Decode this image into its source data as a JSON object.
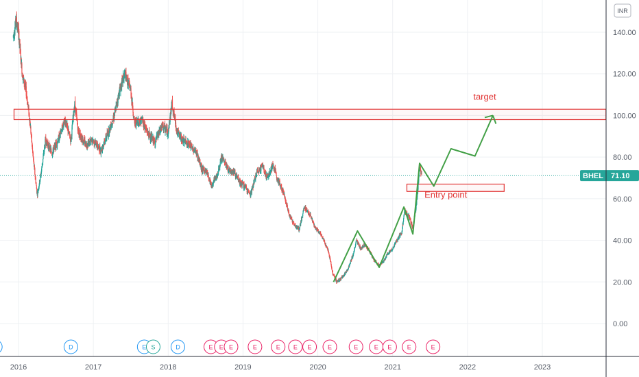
{
  "currency_label": "INR",
  "chart_data": {
    "type": "candlestick",
    "symbol": "BHEL",
    "last_price": 71.1,
    "last_price_label": "71.10",
    "ylim": [
      -12,
      150
    ],
    "y_ticks": [
      0,
      20,
      40,
      60,
      80,
      100,
      120,
      140
    ],
    "y_tick_labels": [
      "0.00",
      "20.00",
      "40.00",
      "60.00",
      "80.00",
      "100.00",
      "120.00",
      "140.00"
    ],
    "xlim": [
      2015.93,
      2024.0
    ],
    "x_ticks": [
      2016,
      2017,
      2018,
      2019,
      2020,
      2021,
      2022,
      2023
    ],
    "x_tick_labels": [
      "2016",
      "2017",
      "2018",
      "2019",
      "2020",
      "2021",
      "2022",
      "2023"
    ],
    "plot_area_end": 2023.85,
    "price_path": [
      [
        2015.93,
        138
      ],
      [
        2015.97,
        146
      ],
      [
        2016.0,
        140
      ],
      [
        2016.05,
        120
      ],
      [
        2016.1,
        112
      ],
      [
        2016.15,
        98
      ],
      [
        2016.2,
        78
      ],
      [
        2016.25,
        62
      ],
      [
        2016.3,
        72
      ],
      [
        2016.36,
        88
      ],
      [
        2016.45,
        82
      ],
      [
        2016.55,
        90
      ],
      [
        2016.62,
        98
      ],
      [
        2016.7,
        88
      ],
      [
        2016.75,
        106
      ],
      [
        2016.8,
        92
      ],
      [
        2016.9,
        86
      ],
      [
        2017.0,
        88
      ],
      [
        2017.1,
        83
      ],
      [
        2017.2,
        92
      ],
      [
        2017.28,
        100
      ],
      [
        2017.35,
        112
      ],
      [
        2017.42,
        120
      ],
      [
        2017.5,
        112
      ],
      [
        2017.55,
        96
      ],
      [
        2017.65,
        98
      ],
      [
        2017.72,
        92
      ],
      [
        2017.82,
        87
      ],
      [
        2017.92,
        95
      ],
      [
        2018.0,
        92
      ],
      [
        2018.05,
        106
      ],
      [
        2018.12,
        92
      ],
      [
        2018.2,
        88
      ],
      [
        2018.28,
        86
      ],
      [
        2018.38,
        82
      ],
      [
        2018.45,
        74
      ],
      [
        2018.52,
        73
      ],
      [
        2018.58,
        66
      ],
      [
        2018.66,
        72
      ],
      [
        2018.72,
        80
      ],
      [
        2018.8,
        74
      ],
      [
        2018.88,
        73
      ],
      [
        2018.95,
        68
      ],
      [
        2019.02,
        66
      ],
      [
        2019.1,
        62
      ],
      [
        2019.18,
        72
      ],
      [
        2019.26,
        76
      ],
      [
        2019.32,
        70
      ],
      [
        2019.4,
        76
      ],
      [
        2019.48,
        68
      ],
      [
        2019.55,
        62
      ],
      [
        2019.62,
        52
      ],
      [
        2019.68,
        48
      ],
      [
        2019.75,
        45
      ],
      [
        2019.82,
        56
      ],
      [
        2019.9,
        52
      ],
      [
        2019.96,
        46
      ],
      [
        2020.02,
        44
      ],
      [
        2020.08,
        40
      ],
      [
        2020.14,
        35
      ],
      [
        2020.2,
        24
      ],
      [
        2020.25,
        20
      ],
      [
        2020.32,
        22
      ],
      [
        2020.4,
        26
      ],
      [
        2020.47,
        33
      ],
      [
        2020.52,
        40
      ],
      [
        2020.57,
        36
      ],
      [
        2020.63,
        38
      ],
      [
        2020.7,
        34
      ],
      [
        2020.76,
        30
      ],
      [
        2020.82,
        28
      ],
      [
        2020.88,
        30
      ],
      [
        2020.94,
        34
      ],
      [
        2021.0,
        36
      ],
      [
        2021.06,
        40
      ],
      [
        2021.12,
        44
      ],
      [
        2021.16,
        54
      ],
      [
        2021.22,
        51
      ],
      [
        2021.27,
        46
      ],
      [
        2021.32,
        58
      ],
      [
        2021.36,
        75
      ],
      [
        2021.39,
        71
      ]
    ],
    "sr_zone": {
      "y_top": 103,
      "y_bottom": 98,
      "x_start": 2015.94,
      "x_end": 2023.85,
      "color": "#e03131"
    },
    "entry_zone": {
      "y_top": 67,
      "y_bottom": 63.5,
      "x_start": 2021.19,
      "x_end": 2022.49,
      "color": "#e03131"
    },
    "projection": {
      "color": "#43a047",
      "x": [
        2020.21,
        2020.53,
        2020.82,
        2021.15,
        2021.27,
        2021.36,
        2021.55,
        2021.78,
        2022.1,
        2022.34
      ],
      "y": [
        20,
        44.5,
        27,
        56,
        43,
        77,
        66,
        84,
        80.5,
        100
      ],
      "arrow_to": [
        2022.38,
        96
      ]
    },
    "annotations": [
      {
        "text": "target",
        "x": 2022.23,
        "y": 107.5
      },
      {
        "text": "Entry point",
        "x": 2021.71,
        "y": 60.5
      }
    ],
    "event_badges": [
      {
        "label": "D",
        "x": 2015.69,
        "color": "#2196f3"
      },
      {
        "label": "D",
        "x": 2016.7,
        "color": "#2196f3"
      },
      {
        "label": "E",
        "x": 2017.68,
        "color": "#2196f3"
      },
      {
        "label": "S",
        "x": 2017.8,
        "color": "#26a69a"
      },
      {
        "label": "D",
        "x": 2018.13,
        "color": "#2196f3"
      },
      {
        "label": "E",
        "x": 2018.57,
        "color": "#e91e63"
      },
      {
        "label": "E",
        "x": 2018.71,
        "color": "#e91e63"
      },
      {
        "label": "E",
        "x": 2018.84,
        "color": "#e91e63"
      },
      {
        "label": "E",
        "x": 2019.16,
        "color": "#e91e63"
      },
      {
        "label": "E",
        "x": 2019.47,
        "color": "#e91e63"
      },
      {
        "label": "E",
        "x": 2019.7,
        "color": "#e91e63"
      },
      {
        "label": "E",
        "x": 2019.89,
        "color": "#e91e63"
      },
      {
        "label": "E",
        "x": 2020.16,
        "color": "#e91e63"
      },
      {
        "label": "E",
        "x": 2020.51,
        "color": "#e91e63"
      },
      {
        "label": "E",
        "x": 2020.78,
        "color": "#e91e63"
      },
      {
        "label": "E",
        "x": 2020.96,
        "color": "#e91e63"
      },
      {
        "label": "E",
        "x": 2021.22,
        "color": "#e91e63"
      },
      {
        "label": "E",
        "x": 2021.54,
        "color": "#e91e63"
      }
    ],
    "colors": {
      "up": "#26a69a",
      "down": "#ef5350",
      "last_price": "#26a69a"
    }
  }
}
